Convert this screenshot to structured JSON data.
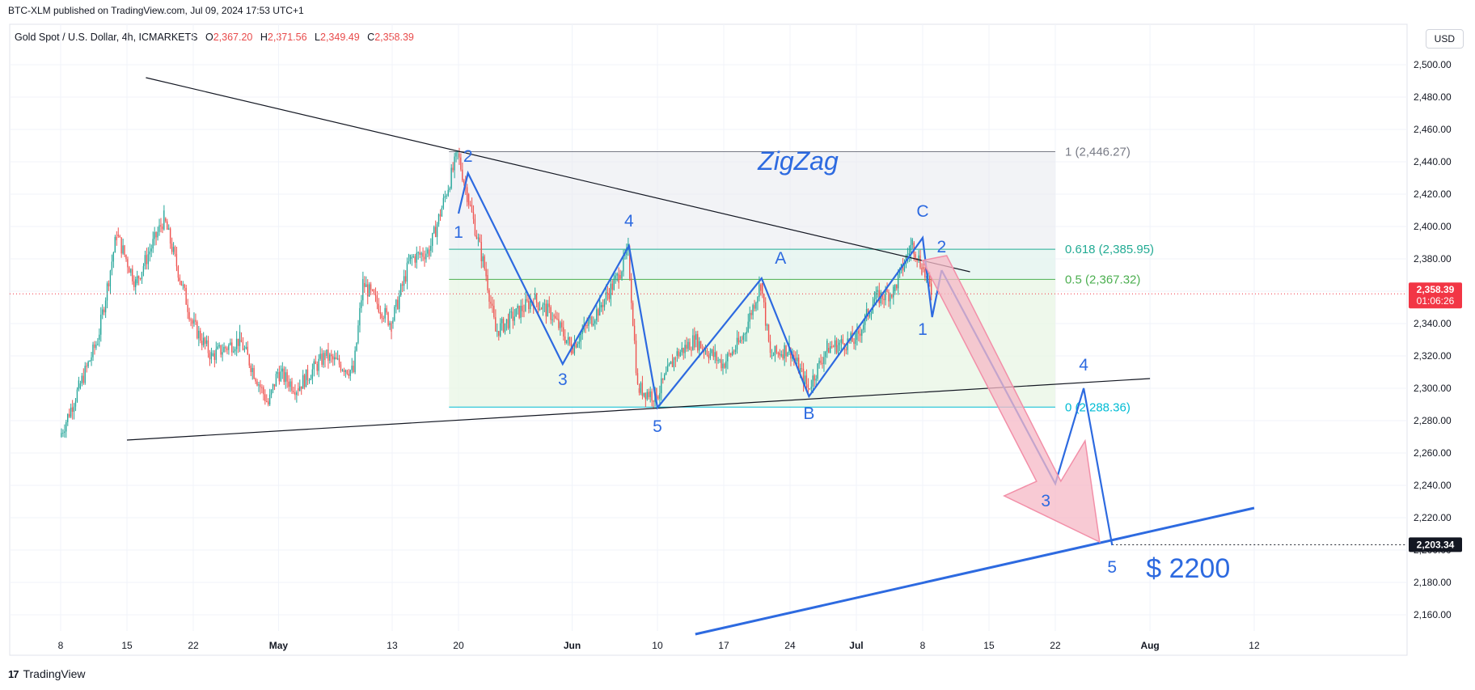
{
  "publisher": "BTC-XLM published on TradingView.com, Jul 09, 2024 17:53 UTC+1",
  "legend": {
    "symbol": "Gold Spot / U.S. Dollar, 4h, ICMARKETS",
    "open_k": "O",
    "open": "2,367.20",
    "high_k": "H",
    "high": "2,371.56",
    "low_k": "L",
    "low": "2,349.49",
    "close_k": "C",
    "close": "2,358.39"
  },
  "currency": "USD",
  "footer_brand": "TradingView",
  "footer_logo": "17",
  "colors": {
    "up": "#26a69a",
    "down": "#ef5350",
    "accent": "#2d6ae0",
    "fib_gray": "#787b86",
    "fib_green": "#22ab94",
    "fib_lime": "#4caf50",
    "fib_cyan": "#00bcd4",
    "price_tag": "#f23645"
  },
  "chart_data": {
    "type": "candlestick",
    "timeframe": "4h",
    "ylim": [
      2140,
      2510
    ],
    "y_ticks": [
      "2,500.00",
      "2,480.00",
      "2,460.00",
      "2,440.00",
      "2,420.00",
      "2,400.00",
      "2,380.00",
      "2,360.00",
      "2,340.00",
      "2,320.00",
      "2,300.00",
      "2,280.00",
      "2,260.00",
      "2,240.00",
      "2,220.00",
      "2,200.00",
      "2,180.00",
      "2,160.00"
    ],
    "x_ticks": [
      "8",
      "15",
      "22",
      "May",
      "13",
      "20",
      "Jun",
      "10",
      "17",
      "24",
      "Jul",
      "8",
      "15",
      "22",
      "Aug",
      "12"
    ],
    "current_price": "2,358.39",
    "countdown": "01:06:26",
    "target_price": "2,203.34",
    "annotation_title": "ZigZag",
    "target_text": "$ 2200",
    "fib_levels": [
      {
        "label": "1 (2,446.27)",
        "value": 2446.27
      },
      {
        "label": "0.618 (2,385.95)",
        "value": 2385.95
      },
      {
        "label": "0.5 (2,367.32)",
        "value": 2367.32
      },
      {
        "label": "0 (2,288.36)",
        "value": 2288.36
      }
    ],
    "wave_labels": [
      "1",
      "2",
      "3",
      "4",
      "5",
      "A",
      "B",
      "C",
      "1",
      "2",
      "3",
      "4",
      "5"
    ],
    "zigzag_path": [
      {
        "x": "May 20",
        "y": 2408
      },
      {
        "x": "May 21",
        "y": 2433
      },
      {
        "x": "May 31",
        "y": 2315
      },
      {
        "x": "Jun 7",
        "y": 2388
      },
      {
        "x": "Jun 10",
        "y": 2288
      },
      {
        "x": "Jun 21",
        "y": 2368
      },
      {
        "x": "Jun 26",
        "y": 2295
      },
      {
        "x": "Jul 8",
        "y": 2393
      },
      {
        "x": "Jul 9",
        "y": 2344
      },
      {
        "x": "Jul 10",
        "y": 2373
      }
    ],
    "projection_path": [
      {
        "x": "Jul 10",
        "y": 2373
      },
      {
        "x": "Jul 22",
        "y": 2241
      },
      {
        "x": "Jul 25",
        "y": 2300
      },
      {
        "x": "Jul 28",
        "y": 2203
      }
    ],
    "resistance_line": [
      {
        "x": "Apr 17",
        "y": 2492
      },
      {
        "x": "Jul 13",
        "y": 2372
      }
    ],
    "support_line": [
      {
        "x": "Apr 15",
        "y": 2268
      },
      {
        "x": "Aug 1",
        "y": 2306
      }
    ],
    "blue_trendline": [
      {
        "x": "Jun 14",
        "y": 2148
      },
      {
        "x": "Aug 12",
        "y": 2226
      }
    ]
  }
}
